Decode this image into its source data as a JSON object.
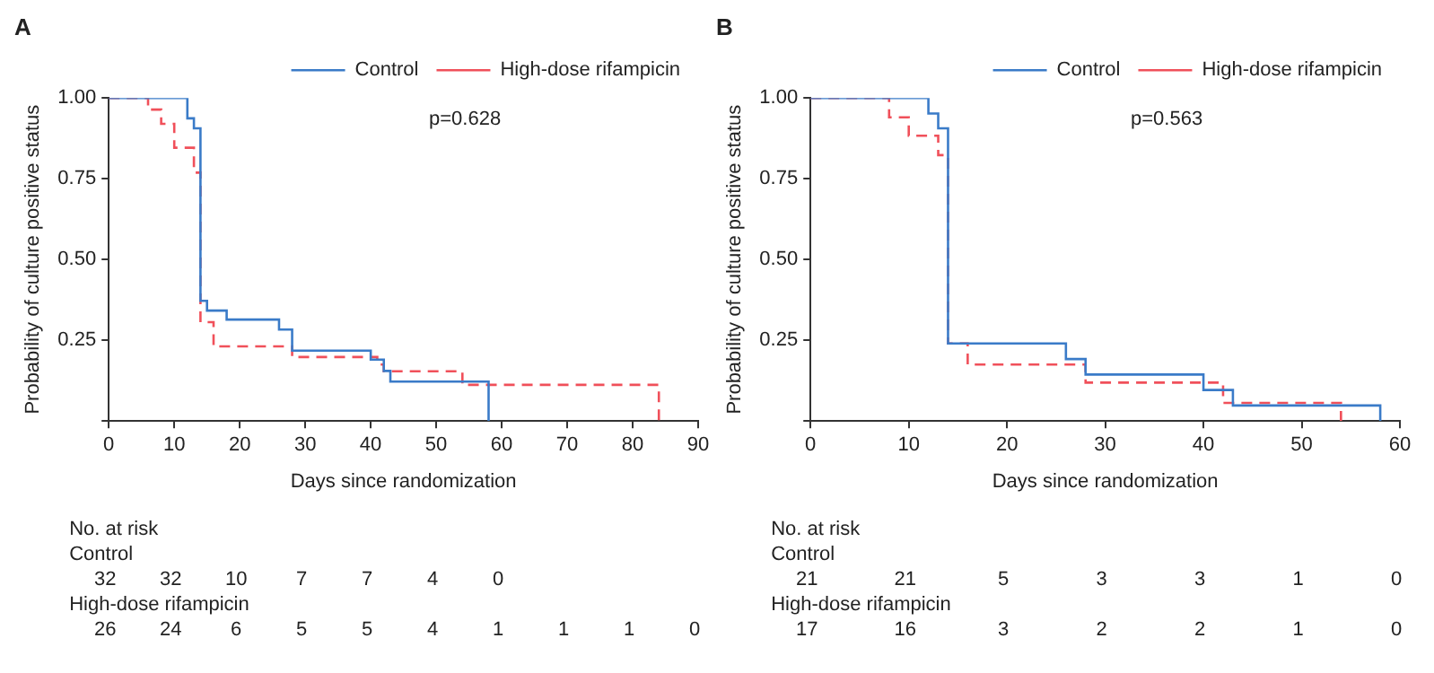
{
  "chart_data": [
    {
      "type": "step",
      "title": "A",
      "xlabel": "Days since randomization",
      "ylabel": "Probability of culture positive status",
      "xlim": [
        0,
        90
      ],
      "xticks": [
        0,
        10,
        20,
        30,
        40,
        50,
        60,
        70,
        80,
        90
      ],
      "ylim": [
        0,
        1
      ],
      "yticks": [
        {
          "value": 0,
          "label": null
        },
        {
          "value": 0.25,
          "label": "0.25"
        },
        {
          "value": 0.5,
          "label": "0.50"
        },
        {
          "value": 0.75,
          "label": "0.75"
        },
        {
          "value": 1,
          "label": "1.00"
        }
      ],
      "grid": false,
      "legend": "top right",
      "series": [
        {
          "name": "Control",
          "color": "#3a7bc8",
          "line_style": "solid",
          "x": [
            0,
            12,
            13,
            14,
            15,
            18,
            26,
            28,
            40,
            42,
            43,
            58
          ],
          "values": [
            1,
            0.937,
            0.906,
            0.372,
            0.342,
            0.314,
            0.283,
            0.218,
            0.19,
            0.155,
            0.122,
            0
          ]
        },
        {
          "name": "High-dose rifampicin",
          "color": "#f0505a",
          "line_style": "dashed",
          "x": [
            0,
            6,
            8,
            10,
            13,
            14,
            16,
            28,
            41,
            42,
            54,
            84
          ],
          "values": [
            1,
            0.964,
            0.92,
            0.846,
            0.769,
            0.306,
            0.231,
            0.198,
            0.175,
            0.154,
            0.112,
            0
          ]
        }
      ],
      "annotations": [
        "p=0.628",
        "No. at risk",
        "Control",
        "32 32 10 7 7 4 0",
        "High-dose rifampicin",
        "26 24 6 5 5 4 1 1 1 0"
      ]
    },
    {
      "type": "step",
      "title": "B",
      "xlabel": "Days since randomization",
      "ylabel": "Probability of culture positive status",
      "xlim": [
        0,
        60
      ],
      "xticks": [
        0,
        10,
        20,
        30,
        40,
        50,
        60
      ],
      "ylim": [
        0,
        1
      ],
      "yticks": [
        {
          "value": 0,
          "label": null
        },
        {
          "value": 0.25,
          "label": "0.25"
        },
        {
          "value": 0.5,
          "label": "0.50"
        },
        {
          "value": 0.75,
          "label": "0.75"
        },
        {
          "value": 1,
          "label": "1.00"
        }
      ],
      "grid": false,
      "legend": "top right",
      "series": [
        {
          "name": "Control",
          "color": "#3a7bc8",
          "line_style": "solid",
          "x": [
            0,
            12,
            13,
            14,
            26,
            28,
            40,
            43,
            58
          ],
          "values": [
            1,
            0.952,
            0.906,
            0.24,
            0.192,
            0.144,
            0.096,
            0.048,
            0
          ]
        },
        {
          "name": "High-dose rifampicin",
          "color": "#f0505a",
          "line_style": "dashed",
          "x": [
            0,
            8,
            10,
            13,
            14,
            16,
            28,
            42,
            54
          ],
          "values": [
            1,
            0.94,
            0.883,
            0.823,
            0.24,
            0.175,
            0.119,
            0.056,
            0
          ]
        }
      ],
      "annotations": [
        "p=0.563",
        "No. at risk",
        "Control",
        "21 21 5 3 3 1 0",
        "High-dose rifampicin",
        "17 16 3 2 2 1 0"
      ]
    }
  ]
}
